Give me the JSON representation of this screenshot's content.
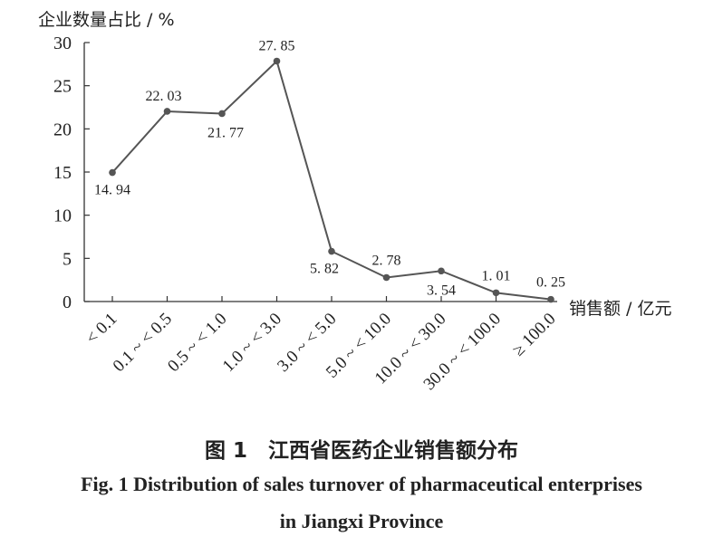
{
  "chart_data": {
    "type": "line",
    "ylabel": "企业数量占比 / %",
    "xlabel": "销售额 / 亿元",
    "categories": [
      "< 0.1",
      "0.1 ~ < 0.5",
      "0.5 ~ < 1.0",
      "1.0 ~ < 3.0",
      "3.0 ~ < 5.0",
      "5.0 ~ < 10.0",
      "10.0 ~ < 30.0",
      "30.0 ~ < 100.0",
      "≥ 100.0"
    ],
    "values": [
      14.94,
      22.03,
      21.77,
      27.85,
      5.82,
      2.78,
      3.54,
      1.01,
      0.25
    ],
    "data_labels": [
      "14. 94",
      "22. 03",
      "21. 77",
      "27. 85",
      "5. 82",
      "2. 78",
      "3. 54",
      "1. 01",
      "0. 25"
    ],
    "ylim": [
      0,
      30
    ],
    "yticks": [
      0,
      5,
      10,
      15,
      20,
      25,
      30
    ],
    "grid": false,
    "line_color": "#555555"
  },
  "caption": {
    "cn": "图 1　江西省医药企业销售额分布",
    "en_line1": "Fig. 1   Distribution of sales turnover of pharmaceutical enterprises",
    "en_line2": "in Jiangxi Province"
  }
}
